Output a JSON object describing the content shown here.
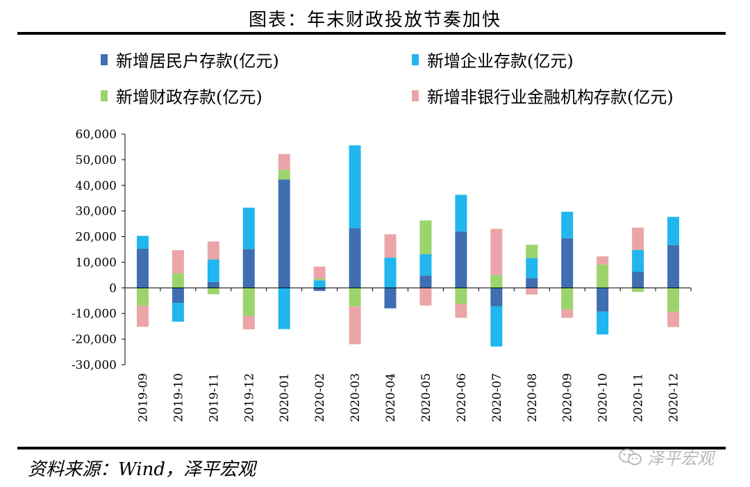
{
  "title": "图表：年末财政投放节奏加快",
  "source": "资料来源：Wind，泽平宏观",
  "watermark": "泽平宏观",
  "chart_data": {
    "type": "bar",
    "stacked": true,
    "categories": [
      "2019-09",
      "2019-10",
      "2019-11",
      "2019-12",
      "2020-01",
      "2020-02",
      "2020-03",
      "2020-04",
      "2020-05",
      "2020-06",
      "2020-07",
      "2020-08",
      "2020-09",
      "2020-10",
      "2020-11",
      "2020-12"
    ],
    "ylim": [
      -30000,
      60000
    ],
    "yticks": [
      -30000,
      -20000,
      -10000,
      0,
      10000,
      20000,
      30000,
      40000,
      50000,
      60000
    ],
    "ytick_labels": [
      "-30,000",
      "-20,000",
      "-10,000",
      "0",
      "10,000",
      "20,000",
      "30,000",
      "40,000",
      "50,000",
      "60,000"
    ],
    "series": [
      {
        "name": "新增居民户存款(亿元)",
        "color": "#3F6FB0",
        "values": [
          15300,
          -5900,
          2300,
          15100,
          42300,
          -1200,
          23300,
          -8000,
          4800,
          22000,
          -7200,
          3800,
          19400,
          -9300,
          6300,
          16700
        ]
      },
      {
        "name": "新增企业存款(亿元)",
        "color": "#21B6EF",
        "values": [
          5000,
          -7300,
          8800,
          16200,
          -16100,
          2900,
          32300,
          11800,
          8300,
          14300,
          -15700,
          7800,
          10300,
          -8900,
          8500,
          11000
        ]
      },
      {
        "name": "新增财政存款(亿元)",
        "color": "#9BD46B",
        "values": [
          -7000,
          5700,
          -2500,
          -11000,
          3800,
          700,
          -7300,
          0,
          13200,
          -6200,
          4900,
          5200,
          -8400,
          9100,
          -1600,
          -9300
        ]
      },
      {
        "name": "新增非银行业金融机构存款(亿元)",
        "color": "#EBA5A8",
        "values": [
          -8200,
          9000,
          7000,
          -5200,
          6100,
          4700,
          -14700,
          9100,
          -6900,
          -5500,
          18100,
          -2600,
          -3300,
          3200,
          8700,
          -6000
        ]
      }
    ]
  }
}
